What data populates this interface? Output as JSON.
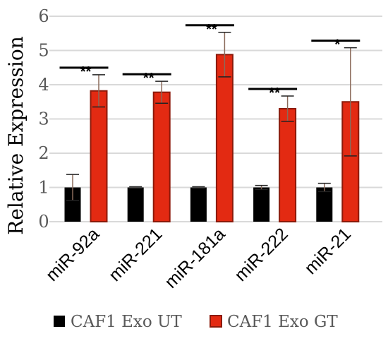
{
  "chart_data": {
    "type": "bar",
    "categories": [
      "miR-92a",
      "miR-221",
      "miR-181a",
      "miR-222",
      "miR-21"
    ],
    "series": [
      {
        "name": "CAF1 Exo UT",
        "color": "#000000",
        "values": [
          1.0,
          1.0,
          1.0,
          1.0,
          1.0
        ],
        "error": [
          0.38,
          0.02,
          0.02,
          0.06,
          0.12
        ]
      },
      {
        "name": "CAF1 Exo GT",
        "color": "#e32a12",
        "edge_color": "#8b1a0a",
        "values": [
          3.82,
          3.78,
          4.88,
          3.3,
          3.5
        ],
        "error": [
          0.47,
          0.32,
          0.65,
          0.37,
          1.58
        ]
      }
    ],
    "significance": [
      "**",
      "**",
      "**",
      "**",
      "*"
    ],
    "ylabel": "Relative Expression",
    "ylim": [
      0,
      6
    ],
    "yticks": [
      "0",
      "1",
      "2",
      "3",
      "4",
      "5",
      "6"
    ],
    "grid": true,
    "legend_position": "bottom"
  }
}
